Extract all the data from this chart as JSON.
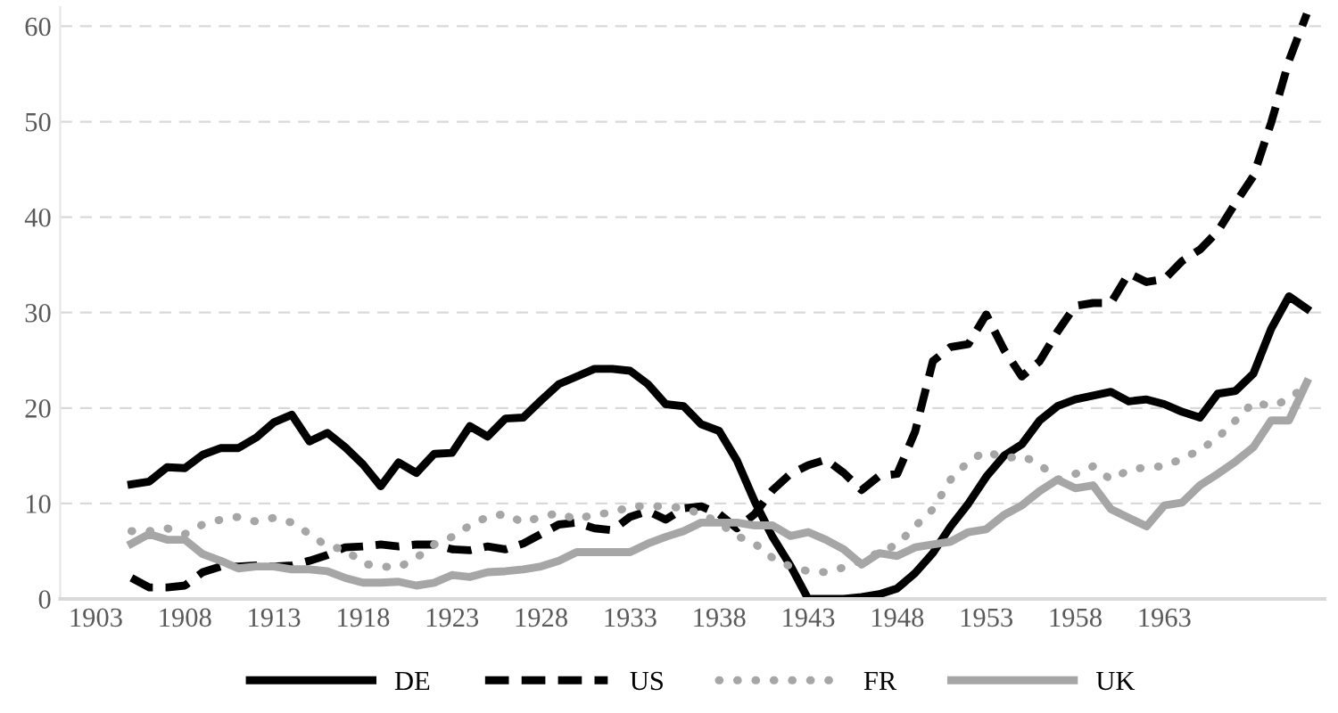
{
  "chart_data": {
    "type": "line",
    "x": [
      1905,
      1906,
      1907,
      1908,
      1909,
      1910,
      1911,
      1912,
      1913,
      1914,
      1915,
      1916,
      1917,
      1918,
      1919,
      1920,
      1921,
      1922,
      1923,
      1924,
      1925,
      1926,
      1927,
      1928,
      1929,
      1930,
      1931,
      1932,
      1933,
      1934,
      1935,
      1936,
      1937,
      1938,
      1939,
      1940,
      1941,
      1942,
      1943,
      1944,
      1945,
      1946,
      1947,
      1948,
      1949,
      1950,
      1951,
      1952,
      1953,
      1954,
      1955,
      1956,
      1957,
      1958,
      1959,
      1960,
      1961,
      1962,
      1963,
      1964,
      1965,
      1966,
      1967,
      1968,
      1969,
      1970,
      1971
    ],
    "series": [
      {
        "name": "DE",
        "color": "#000000",
        "line_style": "solid",
        "values": [
          12.0,
          12.3,
          13.8,
          13.7,
          15.1,
          15.8,
          15.8,
          16.9,
          18.5,
          19.3,
          16.5,
          17.4,
          15.9,
          14.1,
          11.8,
          14.3,
          13.2,
          15.2,
          15.3,
          18.1,
          17.0,
          18.9,
          19.0,
          20.8,
          22.5,
          23.3,
          24.1,
          24.1,
          23.9,
          22.5,
          20.4,
          20.2,
          18.3,
          17.6,
          14.5,
          10.2,
          6.5,
          3.5,
          0,
          0,
          0,
          0.2,
          0.5,
          1.1,
          2.7,
          4.8,
          7.6,
          10.0,
          12.8,
          15.0,
          16.2,
          18.7,
          20.2,
          20.9,
          21.3,
          21.7,
          20.7,
          20.9,
          20.4,
          19.6,
          19.0,
          21.5,
          21.8,
          23.6,
          28.3,
          31.7,
          30.4
        ]
      },
      {
        "name": "US",
        "color": "#000000",
        "line_style": "dashed",
        "values": [
          2.2,
          1.2,
          1.2,
          1.4,
          2.8,
          3.4,
          3.4,
          3.5,
          3.4,
          3.5,
          4.0,
          4.6,
          5.4,
          5.5,
          5.7,
          5.5,
          5.7,
          5.7,
          5.2,
          5.1,
          5.5,
          5.2,
          5.8,
          6.8,
          7.8,
          8.0,
          7.4,
          7.2,
          8.6,
          9.2,
          8.3,
          9.5,
          9.7,
          8.9,
          7.4,
          8.9,
          11.4,
          13.1,
          14.0,
          14.6,
          13.2,
          11.4,
          12.9,
          13.1,
          17.5,
          24.9,
          26.4,
          26.7,
          29.8,
          26.1,
          23.3,
          24.9,
          28.0,
          30.7,
          31.0,
          31.0,
          34.1,
          33.2,
          33.5,
          35.4,
          36.6,
          38.5,
          41.5,
          44.3,
          49.9,
          56.4,
          61.3
        ]
      },
      {
        "name": "FR",
        "color": "#a6a6a6",
        "line_style": "dotted",
        "values": [
          7.1,
          7.1,
          7.4,
          6.8,
          7.8,
          8.3,
          8.6,
          8.1,
          8.5,
          8.0,
          6.8,
          5.5,
          5.2,
          3.7,
          3.4,
          3.3,
          4.3,
          5.7,
          6.5,
          7.7,
          8.6,
          8.9,
          8.0,
          8.6,
          9.0,
          8.3,
          8.9,
          9.0,
          9.7,
          9.7,
          9.7,
          9.5,
          8.9,
          8.0,
          6.6,
          5.8,
          4.3,
          3.4,
          2.9,
          2.8,
          3.3,
          4.0,
          4.9,
          5.7,
          7.6,
          9.4,
          12.5,
          14.4,
          15.5,
          14.7,
          15.0,
          14.1,
          12.5,
          13.1,
          13.9,
          12.5,
          13.5,
          13.8,
          13.9,
          14.7,
          15.6,
          16.9,
          18.7,
          20.6,
          20.2,
          20.9,
          22.5
        ]
      },
      {
        "name": "UK",
        "color": "#a6a6a6",
        "line_style": "solid",
        "values": [
          5.8,
          6.8,
          6.2,
          6.2,
          4.7,
          4.0,
          3.2,
          3.4,
          3.4,
          3.1,
          3.1,
          2.9,
          2.2,
          1.7,
          1.7,
          1.8,
          1.4,
          1.7,
          2.5,
          2.3,
          2.8,
          2.9,
          3.1,
          3.4,
          4.0,
          4.9,
          4.9,
          4.9,
          4.9,
          5.8,
          6.5,
          7.1,
          8.0,
          8.0,
          8.0,
          7.7,
          7.7,
          6.6,
          7.0,
          6.2,
          5.2,
          3.6,
          4.8,
          4.5,
          5.4,
          5.7,
          6.0,
          7.0,
          7.3,
          8.8,
          9.8,
          11.3,
          12.5,
          11.6,
          11.9,
          9.4,
          8.5,
          7.6,
          9.8,
          10.1,
          11.9,
          13.1,
          14.4,
          15.9,
          18.7,
          18.7,
          22.7
        ]
      }
    ],
    "xlim": [
      1901,
      1972
    ],
    "xticks": [
      1903,
      1908,
      1913,
      1918,
      1923,
      1928,
      1933,
      1938,
      1943,
      1948,
      1953,
      1958,
      1963
    ],
    "ylim": [
      0,
      62
    ],
    "yticks": [
      0,
      10,
      20,
      30,
      40,
      50,
      60
    ],
    "grid": "y",
    "legend": "bottom",
    "marker": "none"
  }
}
